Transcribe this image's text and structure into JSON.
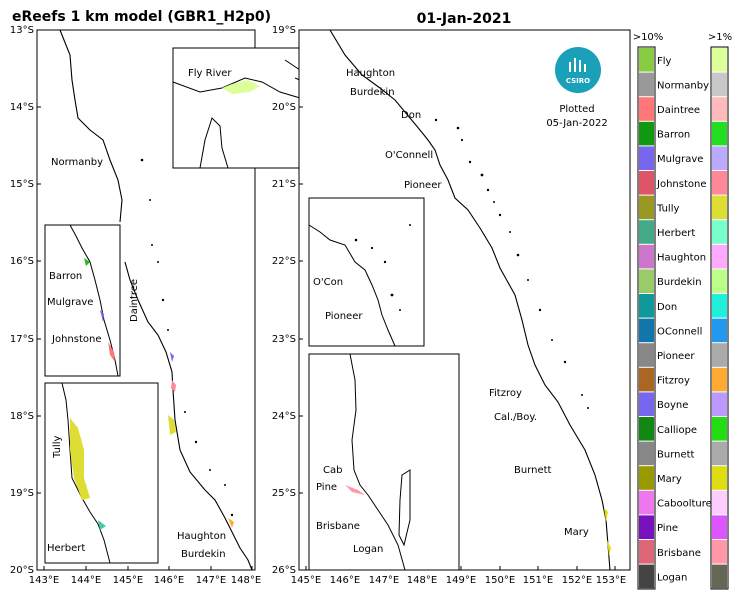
{
  "title": "eReefs 1 km model (GBR1_H2p0)",
  "date": "01-Jan-2021",
  "plotted_label": "Plotted",
  "plotted_date": "05-Jan-2022",
  "logo_text": "CSIRO",
  "left_map": {
    "lat_ticks": [
      "13°S",
      "14°S",
      "15°S",
      "16°S",
      "17°S",
      "18°S",
      "19°S",
      "20°S"
    ],
    "lon_ticks": [
      "143°E",
      "144°E",
      "145°E",
      "146°E",
      "147°E",
      "148°E"
    ],
    "labels": {
      "normanby": "Normanby",
      "daintree": "Daintree",
      "haughton": "Haughton",
      "burdekin": "Burdekin",
      "fly_river": "Fly River",
      "barron": "Barron",
      "mulgrave": "Mulgrave",
      "johnstone": "Johnstone",
      "tully": "Tully",
      "herbert": "Herbert"
    }
  },
  "right_map": {
    "lat_ticks": [
      "19°S",
      "20°S",
      "21°S",
      "22°S",
      "23°S",
      "24°S",
      "25°S",
      "26°S"
    ],
    "lon_ticks": [
      "145°E",
      "146°E",
      "147°E",
      "148°E",
      "149°E",
      "150°E",
      "151°E",
      "152°E",
      "153°E"
    ],
    "labels": {
      "haughton": "Haughton",
      "burdekin": "Burdekin",
      "don": "Don",
      "oconnell": "O'Connell",
      "pioneer": "Pioneer",
      "oconnell_inset": "O'Con",
      "pioneer_inset": "Pioneer",
      "fitzroy": "Fitzroy",
      "calboy": "Cal./Boy.",
      "burnett": "Burnett",
      "mary": "Mary",
      "cab": "Cab",
      "pine": "Pine",
      "brisbane": "Brisbane",
      "logan": "Logan"
    }
  },
  "legend": {
    "header_left": ">10%",
    "header_right": ">1%",
    "items": [
      {
        "label": "Fly",
        "c1": "#88cc44",
        "c2": "#ddff99"
      },
      {
        "label": "Normanby",
        "c1": "#999999",
        "c2": "#c8c8c8"
      },
      {
        "label": "Daintree",
        "c1": "#ff7777",
        "c2": "#ffbbbb"
      },
      {
        "label": "Barron",
        "c1": "#119911",
        "c2": "#22dd22"
      },
      {
        "label": "Mulgrave",
        "c1": "#7766ee",
        "c2": "#bbaaff"
      },
      {
        "label": "Johnstone",
        "c1": "#dd5566",
        "c2": "#ff8899"
      },
      {
        "label": "Tully",
        "c1": "#999922",
        "c2": "#dddd33"
      },
      {
        "label": "Herbert",
        "c1": "#44aa88",
        "c2": "#77ffcc"
      },
      {
        "label": "Haughton",
        "c1": "#cc77cc",
        "c2": "#ffaaff"
      },
      {
        "label": "Burdekin",
        "c1": "#99cc66",
        "c2": "#bbff88"
      },
      {
        "label": "Don",
        "c1": "#119999",
        "c2": "#22eedd"
      },
      {
        "label": "OConnell",
        "c1": "#1177aa",
        "c2": "#2299ee"
      },
      {
        "label": "Pioneer",
        "c1": "#888888",
        "c2": "#aaaaaa"
      },
      {
        "label": "Fitzroy",
        "c1": "#aa6622",
        "c2": "#ffaa33"
      },
      {
        "label": "Boyne",
        "c1": "#7766ee",
        "c2": "#bb99ff"
      },
      {
        "label": "Calliope",
        "c1": "#118811",
        "c2": "#22dd11"
      },
      {
        "label": "Burnett",
        "c1": "#888888",
        "c2": "#aaaaaa"
      },
      {
        "label": "Mary",
        "c1": "#999900",
        "c2": "#dddd11"
      },
      {
        "label": "Caboolture",
        "c1": "#ee77ee",
        "c2": "#ffccff"
      },
      {
        "label": "Pine",
        "c1": "#7711bb",
        "c2": "#dd55ff"
      },
      {
        "label": "Brisbane",
        "c1": "#dd6677",
        "c2": "#ff99aa"
      },
      {
        "label": "Logan",
        "c1": "#444444",
        "c2": "#666655"
      }
    ]
  }
}
